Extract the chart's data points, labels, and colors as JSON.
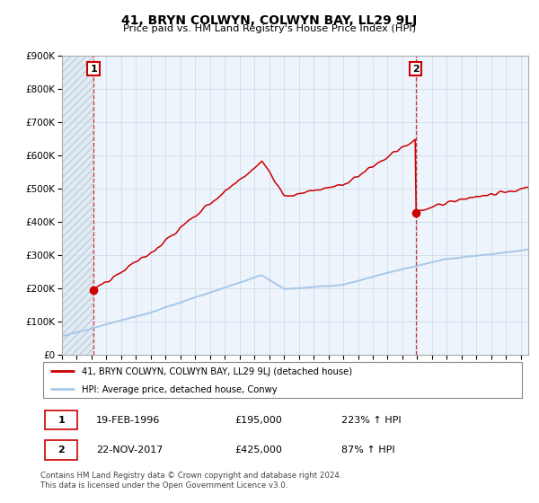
{
  "title": "41, BRYN COLWYN, COLWYN BAY, LL29 9LJ",
  "subtitle": "Price paid vs. HM Land Registry's House Price Index (HPI)",
  "ylim": [
    0,
    900000
  ],
  "yticks": [
    0,
    100000,
    200000,
    300000,
    400000,
    500000,
    600000,
    700000,
    800000,
    900000
  ],
  "hpi_color": "#a8c8e8",
  "price_color": "#cc0000",
  "legend_line1": "41, BRYN COLWYN, COLWYN BAY, LL29 9LJ (detached house)",
  "legend_line2": "HPI: Average price, detached house, Conwy",
  "sale1_date": "19-FEB-1996",
  "sale1_price": "£195,000",
  "sale1_hpi": "223% ↑ HPI",
  "sale1_year": 1996.13,
  "sale1_value": 195000,
  "sale2_date": "22-NOV-2017",
  "sale2_price": "£425,000",
  "sale2_hpi": "87% ↑ HPI",
  "sale2_year": 2017.89,
  "sale2_value": 425000,
  "footer": "Contains HM Land Registry data © Crown copyright and database right 2024.\nThis data is licensed under the Open Government Licence v3.0.",
  "xmin": 1994,
  "xmax": 2025.5
}
